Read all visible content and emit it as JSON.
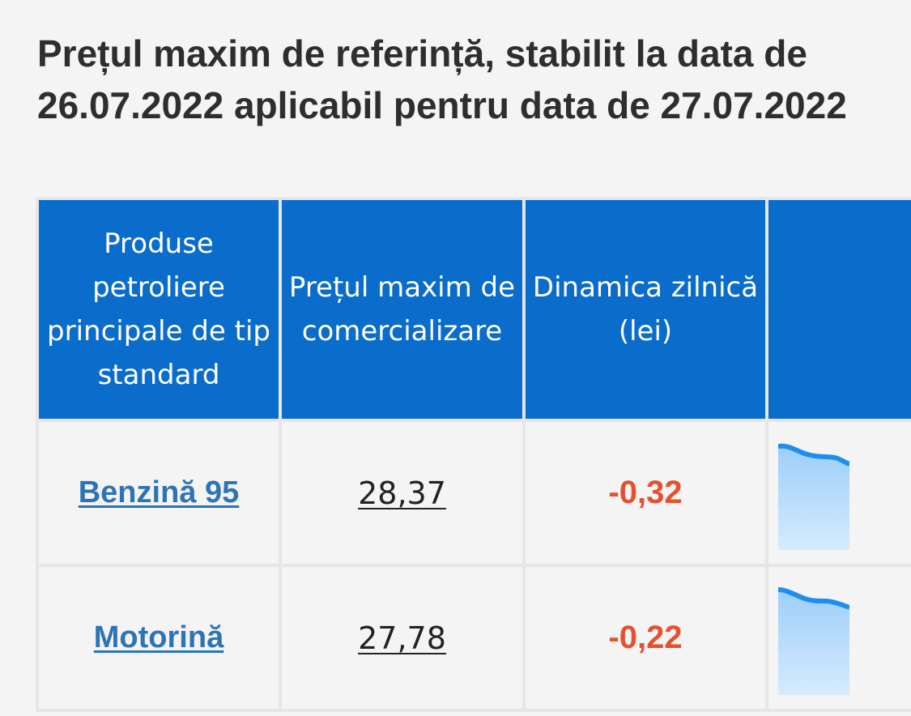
{
  "page": {
    "title": "Prețul maxim de referință, stabilit la data de 26.07.2022 aplicabil pentru data de 27.07.2022"
  },
  "table": {
    "headers": {
      "product": "Produse petroliere principale de tip standard",
      "price": "Prețul maxim de comercializare",
      "dynamic": "Dinamica zilnică (lei)",
      "trend": ""
    },
    "rows": [
      {
        "product": "Benzină 95",
        "price": "28,37",
        "dynamic": "-0,32",
        "trend": "down"
      },
      {
        "product": "Motorină",
        "price": "27,78",
        "dynamic": "-0,22",
        "trend": "down"
      }
    ]
  },
  "colors": {
    "header_bg": "#0a6ccb",
    "link": "#2e74b5",
    "negative": "#e5512f",
    "spark_line": "#1e8ef0",
    "spark_fill": "#a9d4fb"
  }
}
